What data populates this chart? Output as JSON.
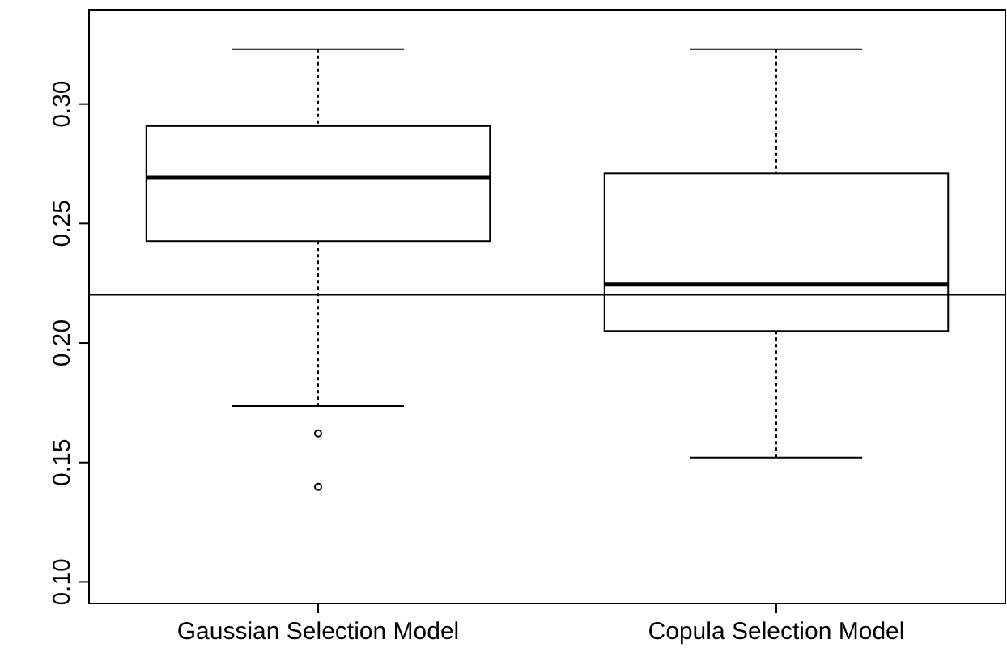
{
  "chart_data": {
    "type": "box",
    "categories": [
      "Gaussian Selection Model",
      "Copula Selection Model"
    ],
    "boxes": [
      {
        "low": 0.1736,
        "q1": 0.2426,
        "median": 0.2694,
        "q3": 0.2908,
        "high": 0.323,
        "outliers": [
          0.1622,
          0.1398
        ]
      },
      {
        "low": 0.152,
        "q1": 0.205,
        "median": 0.2245,
        "q3": 0.271,
        "high": 0.323
      }
    ],
    "ylim": [
      0.091,
      0.3395
    ],
    "yticks": [
      {
        "value": 0.1,
        "label": "0.10"
      },
      0.15,
      {
        "value": 0.2,
        "label": "0.20"
      },
      0.25,
      {
        "value": 0.3,
        "label": "0.30"
      }
    ],
    "ref_lines": [
      {
        "axis": "y",
        "value": 0.2202
      }
    ]
  }
}
